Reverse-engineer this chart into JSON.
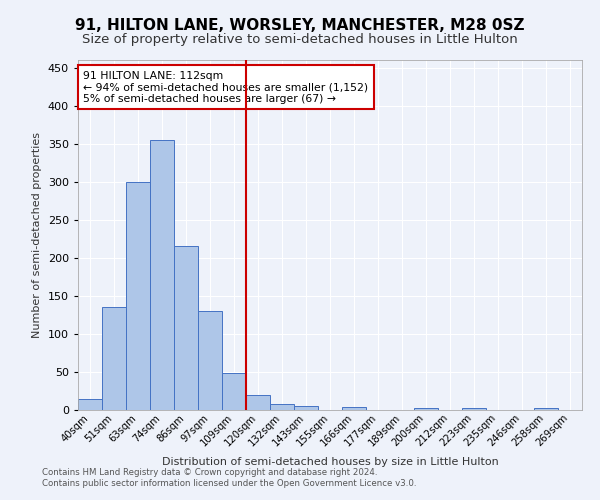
{
  "title": "91, HILTON LANE, WORSLEY, MANCHESTER, M28 0SZ",
  "subtitle": "Size of property relative to semi-detached houses in Little Hulton",
  "xlabel": "Distribution of semi-detached houses by size in Little Hulton",
  "ylabel": "Number of semi-detached properties",
  "footer1": "Contains HM Land Registry data © Crown copyright and database right 2024.",
  "footer2": "Contains public sector information licensed under the Open Government Licence v3.0.",
  "bin_labels": [
    "40sqm",
    "51sqm",
    "63sqm",
    "74sqm",
    "86sqm",
    "97sqm",
    "109sqm",
    "120sqm",
    "132sqm",
    "143sqm",
    "155sqm",
    "166sqm",
    "177sqm",
    "189sqm",
    "200sqm",
    "212sqm",
    "223sqm",
    "235sqm",
    "246sqm",
    "258sqm",
    "269sqm"
  ],
  "bin_values": [
    15,
    135,
    300,
    355,
    215,
    130,
    48,
    20,
    8,
    5,
    0,
    4,
    0,
    0,
    3,
    0,
    2,
    0,
    0,
    3,
    0
  ],
  "bar_color": "#aec6e8",
  "bar_edge_color": "#4472c4",
  "annotation_text1": "91 HILTON LANE: 112sqm",
  "annotation_text2": "← 94% of semi-detached houses are smaller (1,152)",
  "annotation_text3": "5% of semi-detached houses are larger (67) →",
  "vline_color": "#cc0000",
  "ylim": [
    0,
    460
  ],
  "yticks": [
    0,
    50,
    100,
    150,
    200,
    250,
    300,
    350,
    400,
    450
  ],
  "background_color": "#eef2fa",
  "grid_color": "#ffffff",
  "title_fontsize": 11,
  "subtitle_fontsize": 9.5,
  "vline_x": 6.5
}
